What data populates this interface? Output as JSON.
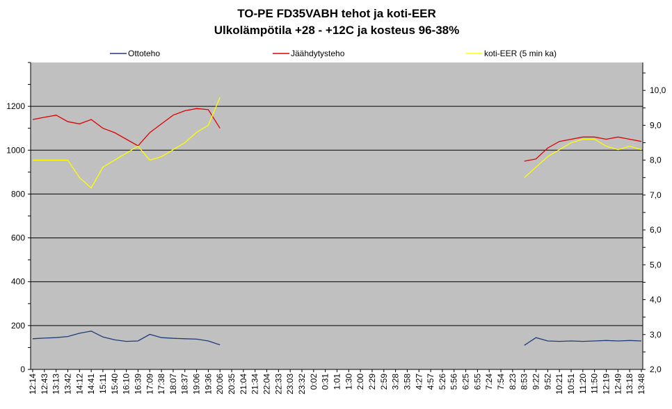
{
  "chart_data": {
    "type": "line",
    "title": "TO-PE FD35VABH tehot ja koti-EER",
    "subtitle": "Ulkolämpötila +28 - +12C ja kosteus 96-38%",
    "categories": [
      "12:14",
      "12:43",
      "13:13",
      "13:42",
      "14:12",
      "14:41",
      "15:11",
      "15:40",
      "16:10",
      "16:39",
      "17:09",
      "17:38",
      "18:07",
      "18:37",
      "19:06",
      "19:36",
      "20:06",
      "20:35",
      "21:04",
      "21:34",
      "22:04",
      "22:33",
      "23:03",
      "23:32",
      "0:02",
      "0:31",
      "1:01",
      "1:30",
      "2:00",
      "2:29",
      "2:59",
      "3:28",
      "3:58",
      "4:27",
      "4:57",
      "5:26",
      "5:56",
      "6:25",
      "6:55",
      "7:24",
      "7:54",
      "8:23",
      "8:53",
      "9:22",
      "9:52",
      "10:21",
      "10:51",
      "11:20",
      "11:50",
      "12:19",
      "12:49",
      "13:18",
      "13:48"
    ],
    "categories_printed": [
      "12:14",
      "12:43",
      "13:13",
      "13:42",
      "14:12",
      "14:41",
      "15:11",
      "15:40",
      "16:10",
      "16:39",
      "17:09",
      "17:38",
      "18:07",
      "18:37",
      "19:06",
      "19:36",
      "20:06",
      "20:35",
      "21:04",
      "21:34",
      "22:04",
      "22:33",
      "23:03",
      "23:32",
      "0:02",
      "0:31",
      "1:01",
      "1:30",
      "2:00",
      "2:29",
      "2:59",
      "3:28",
      "3:58",
      "4:27",
      "4:57",
      "5:26",
      "5:56",
      "6:25",
      "6:55",
      "7:24",
      "7:54",
      "8:23",
      "8:53",
      "9:22",
      "9:52",
      "10:21",
      "10:51",
      "11:20",
      "11:50",
      "12:19",
      "12:49",
      "13:18",
      "13:48"
    ],
    "y_left": {
      "min": 0,
      "max": 1400,
      "ticks": [
        0,
        200,
        400,
        600,
        800,
        1000,
        1200
      ]
    },
    "y_right": {
      "min": 2.0,
      "max": 10.8,
      "ticks": [
        "2,0",
        "3,0",
        "4,0",
        "5,0",
        "6,0",
        "7,0",
        "8,0",
        "9,0",
        "10,0"
      ],
      "tick_values": [
        2,
        3,
        4,
        5,
        6,
        7,
        8,
        9,
        10
      ]
    },
    "grid": true,
    "legend_position": "top",
    "plot_background": "#c0c0c0",
    "series": [
      {
        "name": "Ottoteho",
        "axis": "left",
        "color": "#1f3a7a",
        "values": [
          140,
          143,
          145,
          150,
          165,
          175,
          148,
          135,
          128,
          130,
          160,
          145,
          142,
          140,
          138,
          130,
          112,
          null,
          null,
          null,
          null,
          null,
          null,
          null,
          null,
          null,
          null,
          null,
          null,
          null,
          null,
          null,
          null,
          null,
          null,
          null,
          null,
          null,
          null,
          null,
          null,
          null,
          110,
          145,
          130,
          128,
          130,
          128,
          130,
          132,
          130,
          132,
          130
        ]
      },
      {
        "name": "Jäähdytysteho",
        "axis": "left",
        "color": "#e00000",
        "values": [
          1140,
          1150,
          1160,
          1130,
          1120,
          1140,
          1100,
          1080,
          1050,
          1020,
          1080,
          1120,
          1160,
          1180,
          1190,
          1185,
          1100,
          null,
          null,
          null,
          null,
          null,
          null,
          null,
          null,
          null,
          null,
          null,
          null,
          null,
          null,
          null,
          null,
          null,
          null,
          null,
          null,
          null,
          null,
          null,
          null,
          null,
          950,
          960,
          1010,
          1040,
          1050,
          1060,
          1060,
          1050,
          1060,
          1050,
          1040
        ]
      },
      {
        "name": "koti-EER (5 min ka)",
        "axis": "right",
        "color": "#ffff00",
        "values": [
          8.0,
          8.0,
          8.0,
          8.0,
          7.5,
          7.2,
          7.8,
          8.0,
          8.2,
          8.4,
          8.0,
          8.1,
          8.3,
          8.5,
          8.8,
          9.0,
          9.8,
          null,
          null,
          null,
          null,
          null,
          null,
          null,
          null,
          null,
          null,
          null,
          null,
          null,
          null,
          null,
          null,
          null,
          null,
          null,
          null,
          null,
          null,
          null,
          null,
          null,
          7.5,
          7.8,
          8.1,
          8.3,
          8.5,
          8.6,
          8.6,
          8.4,
          8.3,
          8.4,
          8.3
        ]
      }
    ]
  }
}
